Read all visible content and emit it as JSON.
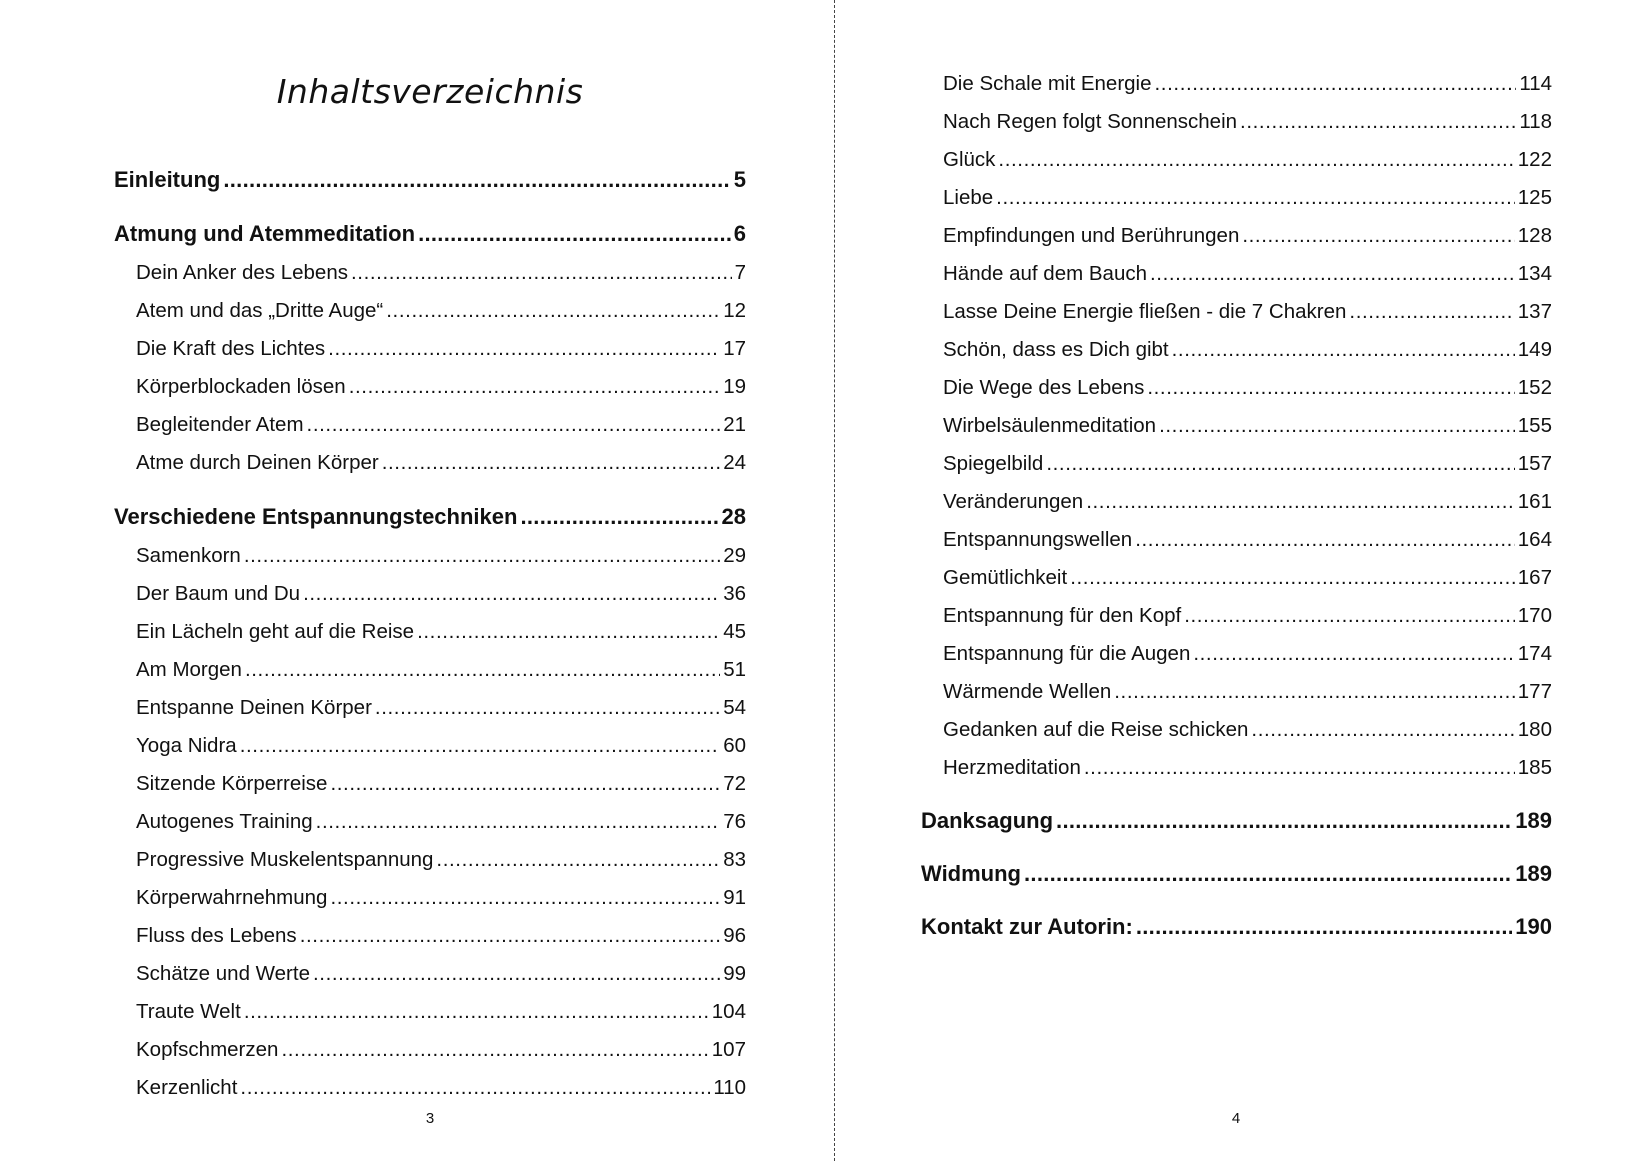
{
  "left_page": {
    "title": "Inhaltsverzeichnis",
    "page_number": "3",
    "entries": [
      {
        "level": "chapter",
        "label": "Einleitung",
        "page": "5"
      },
      {
        "level": "chapter",
        "label": "Atmung und Atemmeditation",
        "page": "6"
      },
      {
        "level": "section",
        "label": "Dein Anker des Lebens",
        "page": "7"
      },
      {
        "level": "section",
        "label": "Atem und das „Dritte Auge“",
        "page": "12"
      },
      {
        "level": "section",
        "label": "Die Kraft des Lichtes",
        "page": "17"
      },
      {
        "level": "section",
        "label": "Körperblockaden lösen",
        "page": "19"
      },
      {
        "level": "section",
        "label": "Begleitender Atem",
        "page": "21"
      },
      {
        "level": "section",
        "label": "Atme durch Deinen Körper",
        "page": "24"
      },
      {
        "level": "chapter",
        "label": "Verschiedene Entspannungstechniken",
        "page": "28"
      },
      {
        "level": "section",
        "label": "Samenkorn",
        "page": "29"
      },
      {
        "level": "section",
        "label": "Der Baum und Du",
        "page": "36"
      },
      {
        "level": "section",
        "label": "Ein Lächeln geht auf die Reise",
        "page": "45"
      },
      {
        "level": "section",
        "label": "Am Morgen",
        "page": "51"
      },
      {
        "level": "section",
        "label": "Entspanne Deinen Körper",
        "page": "54"
      },
      {
        "level": "section",
        "label": "Yoga Nidra",
        "page": "60"
      },
      {
        "level": "section",
        "label": "Sitzende Körperreise",
        "page": "72"
      },
      {
        "level": "section",
        "label": "Autogenes Training",
        "page": "76"
      },
      {
        "level": "section",
        "label": "Progressive Muskelentspannung",
        "page": "83"
      },
      {
        "level": "section",
        "label": "Körperwahrnehmung",
        "page": "91"
      },
      {
        "level": "section",
        "label": "Fluss des Lebens",
        "page": "96"
      },
      {
        "level": "section",
        "label": "Schätze und Werte",
        "page": "99"
      },
      {
        "level": "section",
        "label": "Traute Welt",
        "page": "104"
      },
      {
        "level": "section",
        "label": "Kopfschmerzen",
        "page": "107"
      },
      {
        "level": "section",
        "label": "Kerzenlicht",
        "page": "110"
      }
    ]
  },
  "right_page": {
    "page_number": "4",
    "entries": [
      {
        "level": "section",
        "label": "Die Schale mit Energie",
        "page": "114"
      },
      {
        "level": "section",
        "label": "Nach Regen folgt Sonnenschein",
        "page": "118"
      },
      {
        "level": "section",
        "label": "Glück",
        "page": "122"
      },
      {
        "level": "section",
        "label": "Liebe",
        "page": "125"
      },
      {
        "level": "section",
        "label": "Empfindungen und Berührungen",
        "page": "128"
      },
      {
        "level": "section",
        "label": "Hände auf dem Bauch",
        "page": "134"
      },
      {
        "level": "section",
        "label": "Lasse Deine Energie fließen - die 7 Chakren",
        "page": "137"
      },
      {
        "level": "section",
        "label": "Schön, dass es Dich gibt",
        "page": "149"
      },
      {
        "level": "section",
        "label": "Die Wege des Lebens",
        "page": "152"
      },
      {
        "level": "section",
        "label": "Wirbelsäulenmeditation",
        "page": "155"
      },
      {
        "level": "section",
        "label": "Spiegelbild",
        "page": "157"
      },
      {
        "level": "section",
        "label": "Veränderungen",
        "page": "161"
      },
      {
        "level": "section",
        "label": "Entspannungswellen",
        "page": "164"
      },
      {
        "level": "section",
        "label": "Gemütlichkeit",
        "page": "167"
      },
      {
        "level": "section",
        "label": "Entspannung für den Kopf",
        "page": "170"
      },
      {
        "level": "section",
        "label": "Entspannung für die Augen",
        "page": "174"
      },
      {
        "level": "section",
        "label": "Wärmende Wellen",
        "page": "177"
      },
      {
        "level": "section",
        "label": "Gedanken auf die Reise schicken",
        "page": "180"
      },
      {
        "level": "section",
        "label": "Herzmeditation",
        "page": "185"
      },
      {
        "level": "chapter",
        "label": "Danksagung",
        "page": "189"
      },
      {
        "level": "chapter",
        "label": "Widmung",
        "page": "189"
      },
      {
        "level": "chapter",
        "label": "Kontakt zur Autorin:",
        "page": "190"
      }
    ]
  }
}
